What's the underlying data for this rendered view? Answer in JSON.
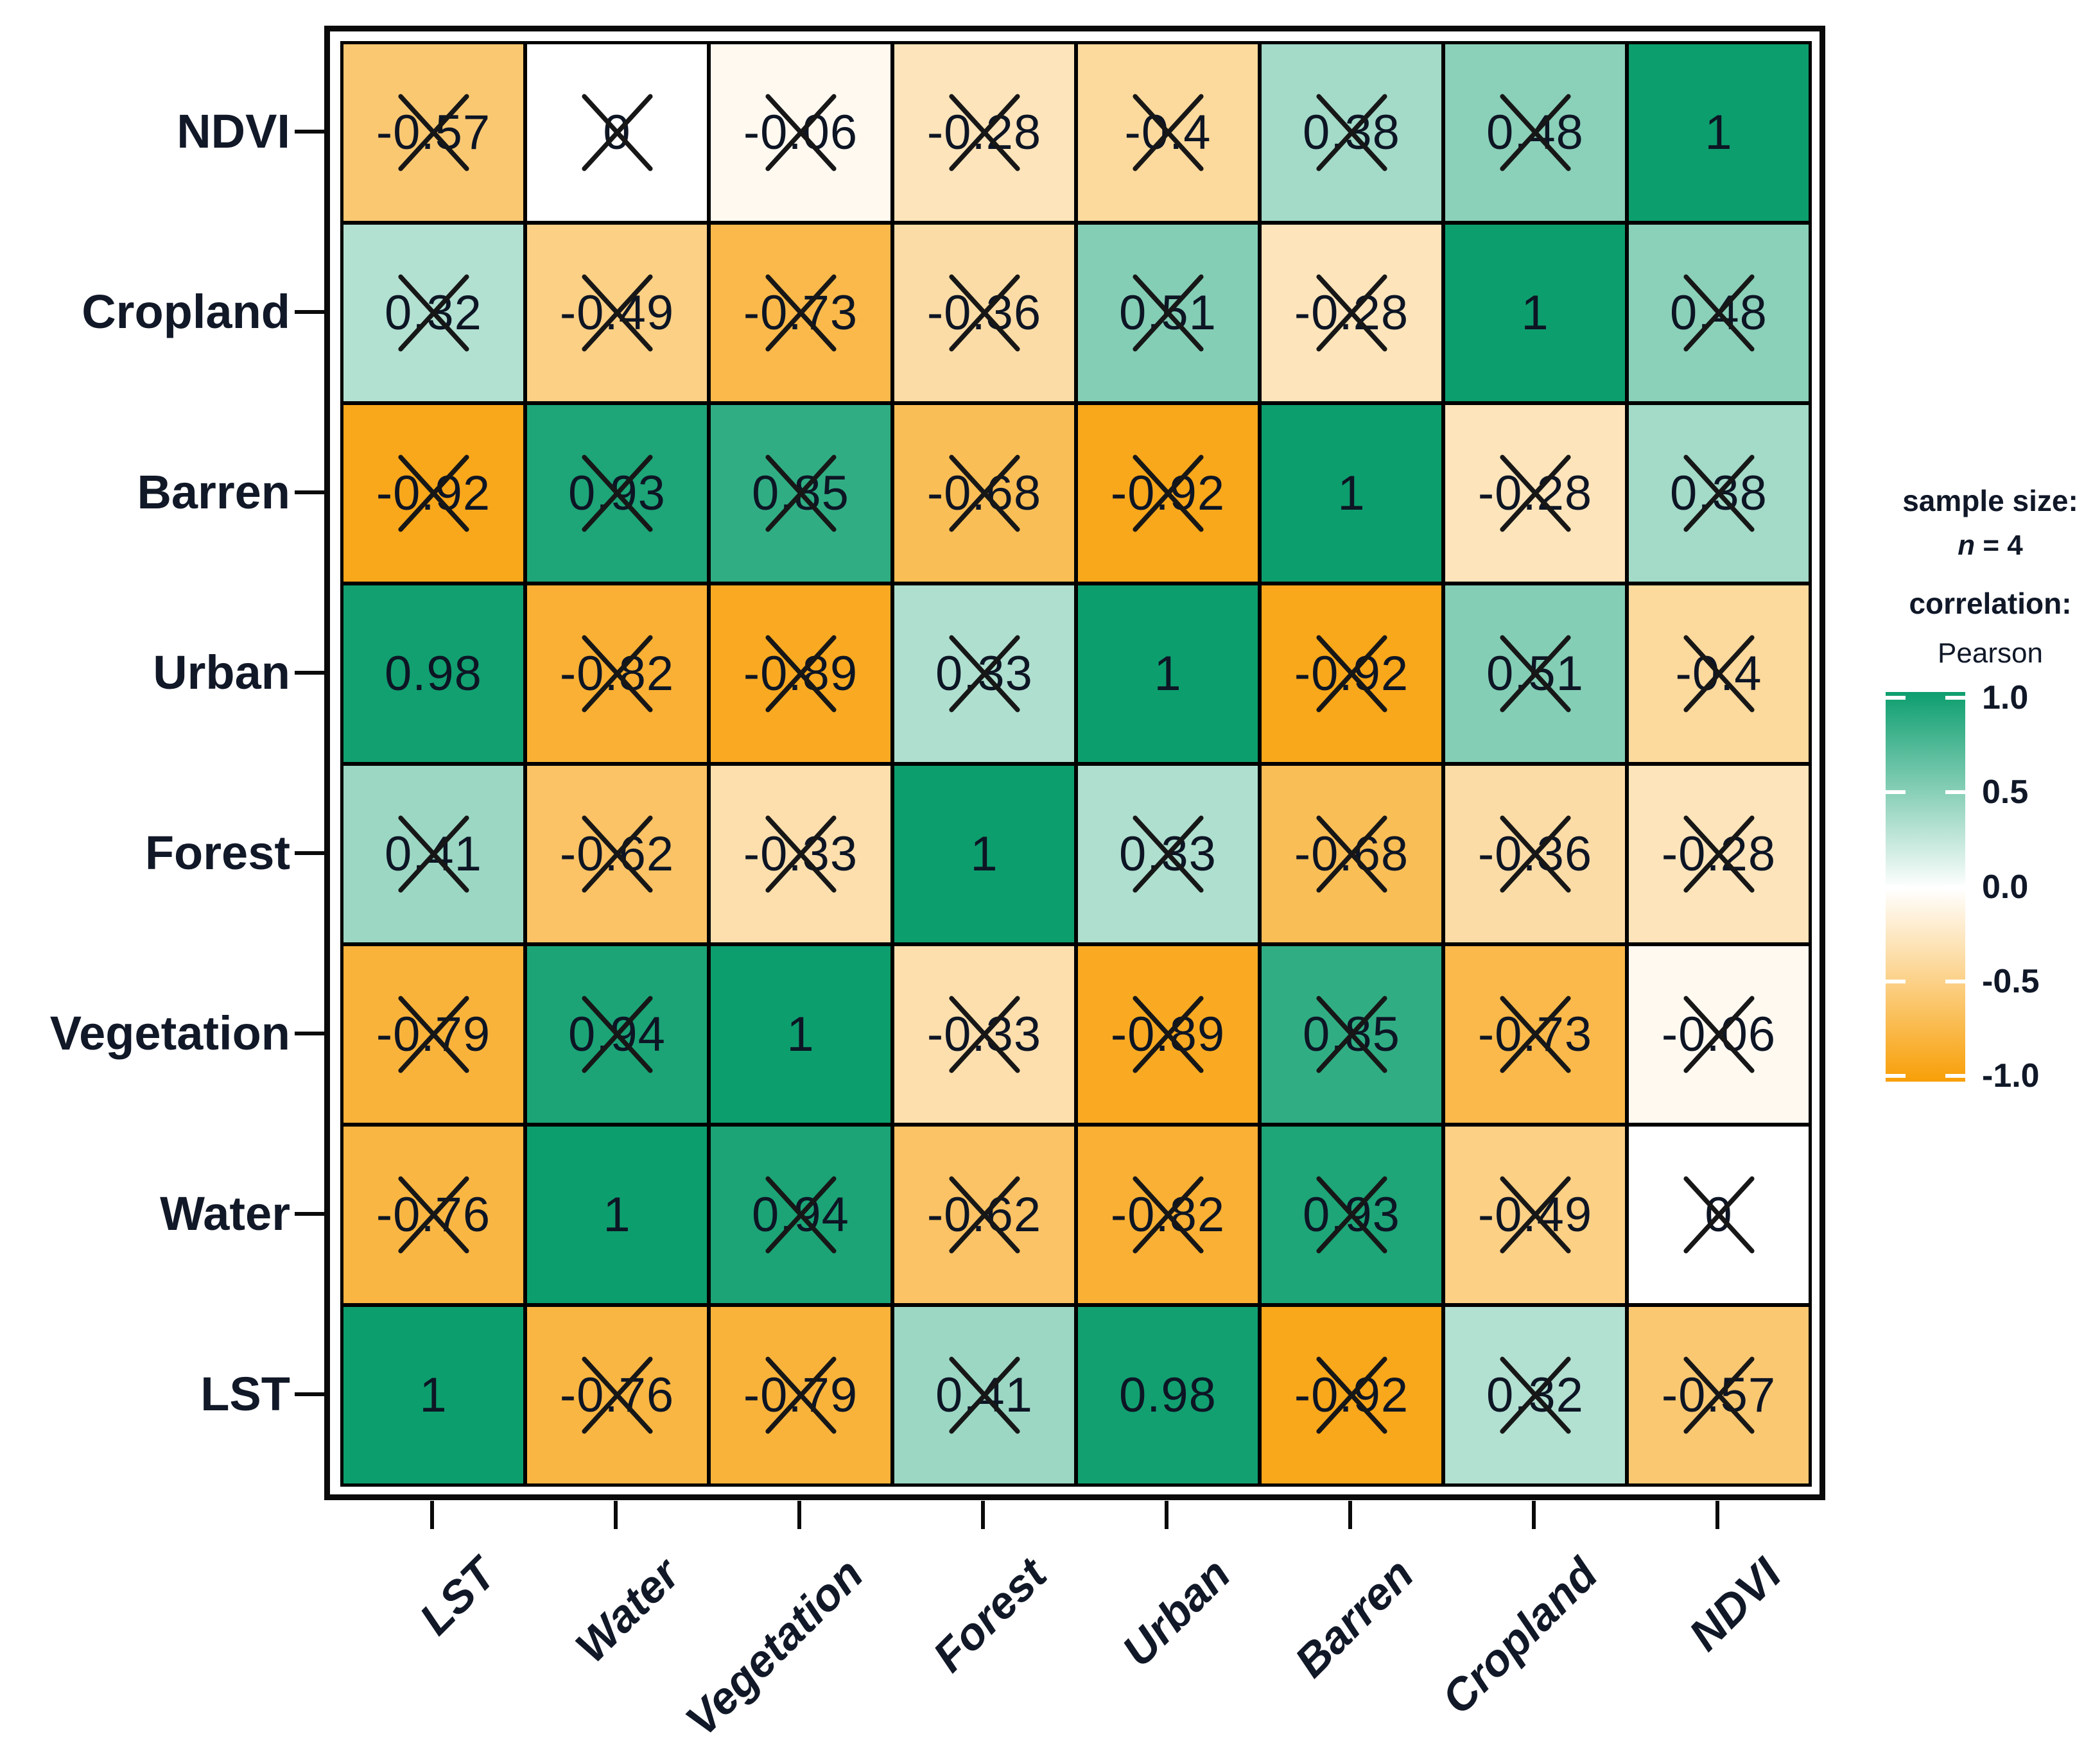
{
  "figure": {
    "kind": "correlation-heatmap",
    "background": "#ffffff"
  },
  "legend": {
    "sample_size_label": "sample size:",
    "n_label": "n",
    "n_rest": " = 4",
    "correlation_label": "correlation:",
    "method": "Pearson",
    "colorbar_tick_labels": [
      "1.0",
      "0.5",
      "0.0",
      "-0.5",
      "-1.0"
    ]
  },
  "chart_data": {
    "type": "heatmap",
    "title": "",
    "xlabel": "",
    "ylabel": "",
    "sample_size": 4,
    "correlation_method": "Pearson",
    "columns": [
      "LST",
      "Water",
      "Vegetation",
      "Forest",
      "Urban",
      "Barren",
      "Cropland",
      "NDVI"
    ],
    "rows": [
      "NDVI",
      "Cropland",
      "Barren",
      "Urban",
      "Forest",
      "Vegetation",
      "Water",
      "LST"
    ],
    "values": [
      [
        -0.57,
        0,
        -0.06,
        -0.28,
        -0.4,
        0.38,
        0.48,
        1
      ],
      [
        0.32,
        -0.49,
        -0.73,
        -0.36,
        0.51,
        -0.28,
        1,
        0.48
      ],
      [
        -0.92,
        0.93,
        0.85,
        -0.68,
        -0.92,
        1,
        -0.28,
        0.38
      ],
      [
        0.98,
        -0.82,
        -0.89,
        0.33,
        1,
        -0.92,
        0.51,
        -0.4
      ],
      [
        0.41,
        -0.62,
        -0.33,
        1,
        0.33,
        -0.68,
        -0.36,
        -0.28
      ],
      [
        -0.79,
        0.94,
        1,
        -0.33,
        -0.89,
        0.85,
        -0.73,
        -0.06
      ],
      [
        -0.76,
        1,
        0.94,
        -0.62,
        -0.82,
        0.93,
        -0.49,
        0
      ],
      [
        1,
        -0.76,
        -0.79,
        0.41,
        0.98,
        -0.92,
        0.32,
        -0.57
      ]
    ],
    "labels": [
      [
        "-0.57",
        "0",
        "-0.06",
        "-0.28",
        "-0.4",
        "0.38",
        "0.48",
        "1"
      ],
      [
        "0.32",
        "-0.49",
        "-0.73",
        "-0.36",
        "0.51",
        "-0.28",
        "1",
        "0.48"
      ],
      [
        "-0.92",
        "0.93",
        "0.85",
        "-0.68",
        "-0.92",
        "1",
        "-0.28",
        "0.38"
      ],
      [
        "0.98",
        "-0.82",
        "-0.89",
        "0.33",
        "1",
        "-0.92",
        "0.51",
        "-0.4"
      ],
      [
        "0.41",
        "-0.62",
        "-0.33",
        "1",
        "0.33",
        "-0.68",
        "-0.36",
        "-0.28"
      ],
      [
        "-0.79",
        "0.94",
        "1",
        "-0.33",
        "-0.89",
        "0.85",
        "-0.73",
        "-0.06"
      ],
      [
        "-0.76",
        "1",
        "0.94",
        "-0.62",
        "-0.82",
        "0.93",
        "-0.49",
        "0"
      ],
      [
        "1",
        "-0.76",
        "-0.79",
        "0.41",
        "0.98",
        "-0.92",
        "0.32",
        "-0.57"
      ]
    ],
    "not_significant_crossed": [
      [
        true,
        true,
        true,
        true,
        true,
        true,
        true,
        false
      ],
      [
        true,
        true,
        true,
        true,
        true,
        true,
        false,
        true
      ],
      [
        true,
        true,
        true,
        true,
        true,
        false,
        true,
        true
      ],
      [
        false,
        true,
        true,
        true,
        false,
        true,
        true,
        true
      ],
      [
        true,
        true,
        true,
        false,
        true,
        true,
        true,
        true
      ],
      [
        true,
        true,
        false,
        true,
        true,
        true,
        true,
        true
      ],
      [
        true,
        false,
        true,
        true,
        true,
        true,
        true,
        true
      ],
      [
        false,
        true,
        true,
        true,
        false,
        true,
        true,
        true
      ]
    ],
    "color_scale": {
      "domain": [
        -1,
        0,
        1
      ],
      "range": [
        "#f89f07",
        "#ffffff",
        "#0d9e6e"
      ]
    },
    "legend_ticks": [
      1.0,
      0.5,
      0.0,
      -0.5,
      -1.0
    ],
    "legend_range": [
      -1.0,
      1.0
    ],
    "grid": false,
    "legend_position": "right"
  }
}
